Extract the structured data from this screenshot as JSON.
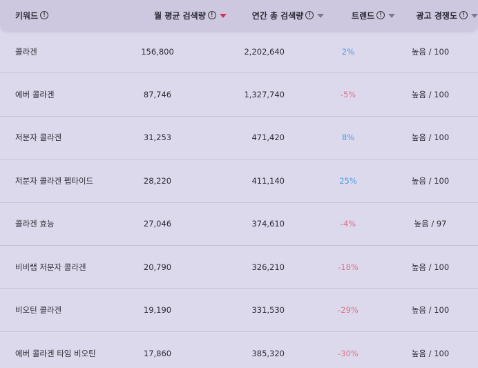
{
  "header": {
    "keyword": "키워드",
    "monthly": "월 평균 검색량",
    "annual": "연간 총 검색량",
    "trend": "트렌드",
    "competition": "광고 경쟁도"
  },
  "colors": {
    "positive_trend": "#4a9be0",
    "negative_trend": "#e0708c",
    "active_sort_arrow": "#d6335a",
    "header_bg": "#cdc8e0",
    "row_bg": "#ddd9ec"
  },
  "rows": [
    {
      "keyword": "콜라겐",
      "monthly": "156,800",
      "annual": "2,202,640",
      "trend": "2%",
      "trend_dir": "pos",
      "competition": "높음 / 100"
    },
    {
      "keyword": "에버 콜라겐",
      "monthly": "87,746",
      "annual": "1,327,740",
      "trend": "-5%",
      "trend_dir": "neg",
      "competition": "높음 / 100"
    },
    {
      "keyword": "저분자 콜라겐",
      "monthly": "31,253",
      "annual": "471,420",
      "trend": "8%",
      "trend_dir": "pos",
      "competition": "높음 / 100"
    },
    {
      "keyword": "저분자 콜라겐 펩타이드",
      "monthly": "28,220",
      "annual": "411,140",
      "trend": "25%",
      "trend_dir": "pos",
      "competition": "높음 / 100"
    },
    {
      "keyword": "콜라겐 효능",
      "monthly": "27,046",
      "annual": "374,610",
      "trend": "-4%",
      "trend_dir": "neg",
      "competition": "높음 / 97"
    },
    {
      "keyword": "비비랩 저분자 콜라겐",
      "monthly": "20,790",
      "annual": "326,210",
      "trend": "-18%",
      "trend_dir": "neg",
      "competition": "높음 / 100"
    },
    {
      "keyword": "비오틴 콜라겐",
      "monthly": "19,190",
      "annual": "331,530",
      "trend": "-29%",
      "trend_dir": "neg",
      "competition": "높음 / 100"
    },
    {
      "keyword": "에버 콜라겐 타임 비오틴",
      "monthly": "17,860",
      "annual": "385,320",
      "trend": "-30%",
      "trend_dir": "neg",
      "competition": "높음 / 100"
    }
  ]
}
